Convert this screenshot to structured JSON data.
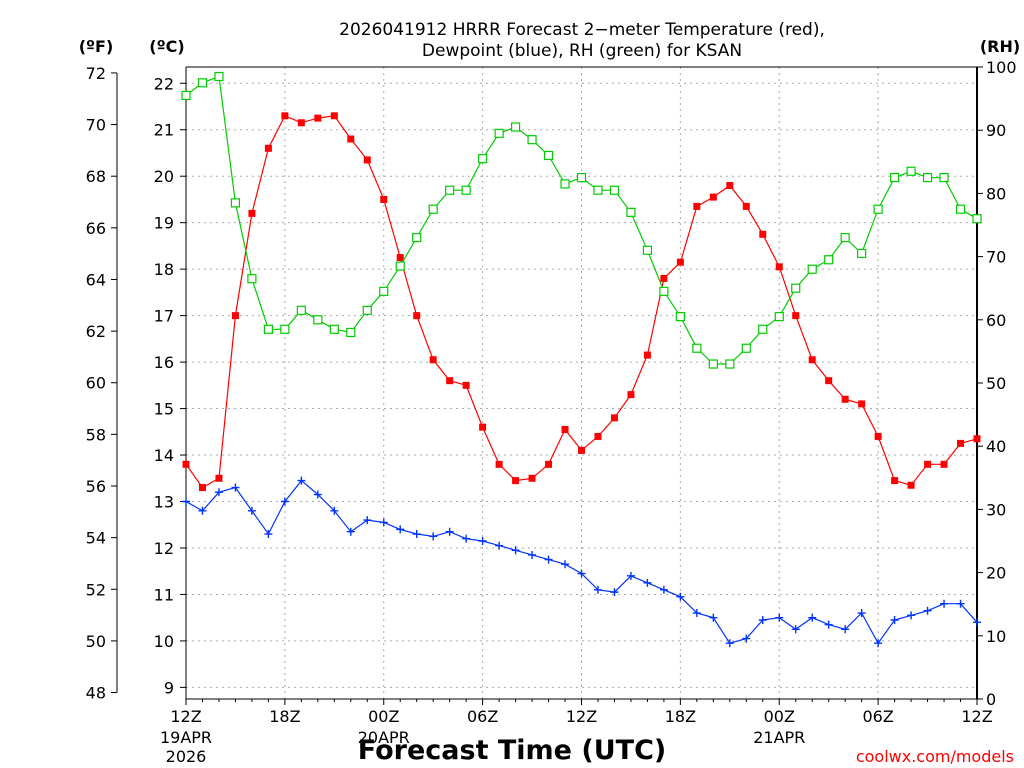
{
  "title_line1": "2026041912 HRRR Forecast 2−meter Temperature (red),",
  "title_line2": "Dewpoint (blue), RH (green) for KSAN",
  "unit_f": "(ºF)",
  "unit_c": "(ºC)",
  "unit_rh": "(RH)",
  "xlabel": "Forecast Time (UTC)",
  "credit": "coolwx.com/models",
  "colors": {
    "temp": "#ff0000",
    "dewpoint": "#0033ff",
    "rh": "#00cc00",
    "credit": "#ff0000"
  },
  "chart_data": {
    "type": "line",
    "title": "2026041912 HRRR Forecast 2-meter Temperature (red), Dewpoint (blue), RH (green) for KSAN",
    "x": [
      0,
      1,
      2,
      3,
      4,
      5,
      6,
      7,
      8,
      9,
      10,
      11,
      12,
      13,
      14,
      15,
      16,
      17,
      18,
      19,
      20,
      21,
      22,
      23,
      24,
      25,
      26,
      27,
      28,
      29,
      30,
      31,
      32,
      33,
      34,
      35,
      36,
      37,
      38,
      39,
      40,
      41,
      42,
      43,
      44,
      45,
      46,
      47,
      48
    ],
    "x_unit": "forecast hour from 2026-04-19 12Z",
    "xlim": [
      0,
      48
    ],
    "x_ticks": [
      0,
      6,
      12,
      18,
      24,
      30,
      36,
      42,
      48
    ],
    "x_tick_labels": [
      "12Z",
      "18Z",
      "00Z",
      "06Z",
      "12Z",
      "18Z",
      "00Z",
      "06Z",
      "12Z"
    ],
    "date_labels": [
      {
        "x": 0,
        "lines": [
          "19APR",
          "2026"
        ]
      },
      {
        "x": 12,
        "lines": [
          "20APR"
        ]
      },
      {
        "x": 36,
        "lines": [
          "21APR"
        ]
      }
    ],
    "celsius_axis": {
      "label": "(ºC)",
      "range": [
        8.75,
        22.35
      ],
      "ticks": [
        9,
        10,
        11,
        12,
        13,
        14,
        15,
        16,
        17,
        18,
        19,
        20,
        21,
        22
      ]
    },
    "fahrenheit_axis": {
      "label": "(ºF)",
      "ticks": [
        48,
        50,
        52,
        54,
        56,
        58,
        60,
        62,
        64,
        66,
        68,
        70,
        72
      ]
    },
    "rh_axis": {
      "label": "(RH)",
      "range": [
        0,
        100
      ],
      "ticks": [
        0,
        10,
        20,
        30,
        40,
        50,
        60,
        70,
        80,
        90,
        100
      ]
    },
    "series": [
      {
        "name": "2-meter Temperature",
        "unit": "°C",
        "axis": "celsius",
        "color": "#ff0000",
        "marker": "filled-square",
        "values": [
          13.8,
          13.3,
          13.5,
          17.0,
          19.2,
          20.6,
          21.3,
          21.15,
          21.25,
          21.3,
          20.8,
          20.35,
          19.5,
          18.25,
          17.0,
          16.05,
          15.6,
          15.5,
          14.6,
          13.8,
          13.45,
          13.5,
          13.8,
          14.55,
          14.1,
          14.4,
          14.8,
          15.3,
          16.15,
          17.8,
          18.15,
          19.35,
          19.55,
          19.8,
          19.35,
          18.75,
          18.05,
          17.0,
          16.05,
          15.6,
          15.2,
          15.1,
          14.4,
          13.45,
          13.35,
          13.8,
          13.8,
          14.25,
          14.35
        ]
      },
      {
        "name": "2-meter Dewpoint",
        "unit": "°C",
        "axis": "celsius",
        "color": "#0033ff",
        "marker": "plus",
        "values": [
          13.0,
          12.8,
          13.2,
          13.3,
          12.8,
          12.3,
          13.0,
          13.45,
          13.15,
          12.8,
          12.35,
          12.6,
          12.55,
          12.4,
          12.3,
          12.25,
          12.35,
          12.2,
          12.15,
          12.05,
          11.95,
          11.85,
          11.75,
          11.65,
          11.45,
          11.1,
          11.05,
          11.4,
          11.25,
          11.1,
          10.95,
          10.6,
          10.5,
          9.95,
          10.05,
          10.45,
          10.5,
          10.25,
          10.5,
          10.35,
          10.25,
          10.6,
          9.95,
          10.45,
          10.55,
          10.65,
          10.8,
          10.8,
          10.4
        ]
      },
      {
        "name": "Relative Humidity",
        "unit": "%",
        "axis": "rh",
        "color": "#00cc00",
        "marker": "open-square",
        "values": [
          95.5,
          97.5,
          98.5,
          78.5,
          66.5,
          58.5,
          58.5,
          61.5,
          60.0,
          58.5,
          58.0,
          61.5,
          64.5,
          68.5,
          73.0,
          77.5,
          80.5,
          80.5,
          85.5,
          89.5,
          90.5,
          88.5,
          86.0,
          81.5,
          82.5,
          80.5,
          80.5,
          77.0,
          71.0,
          64.5,
          60.5,
          55.5,
          53.0,
          53.0,
          55.5,
          58.5,
          60.5,
          65.0,
          68.0,
          69.5,
          73.0,
          70.5,
          77.5,
          82.5,
          83.5,
          82.5,
          82.5,
          77.5,
          76.0
        ]
      }
    ]
  }
}
